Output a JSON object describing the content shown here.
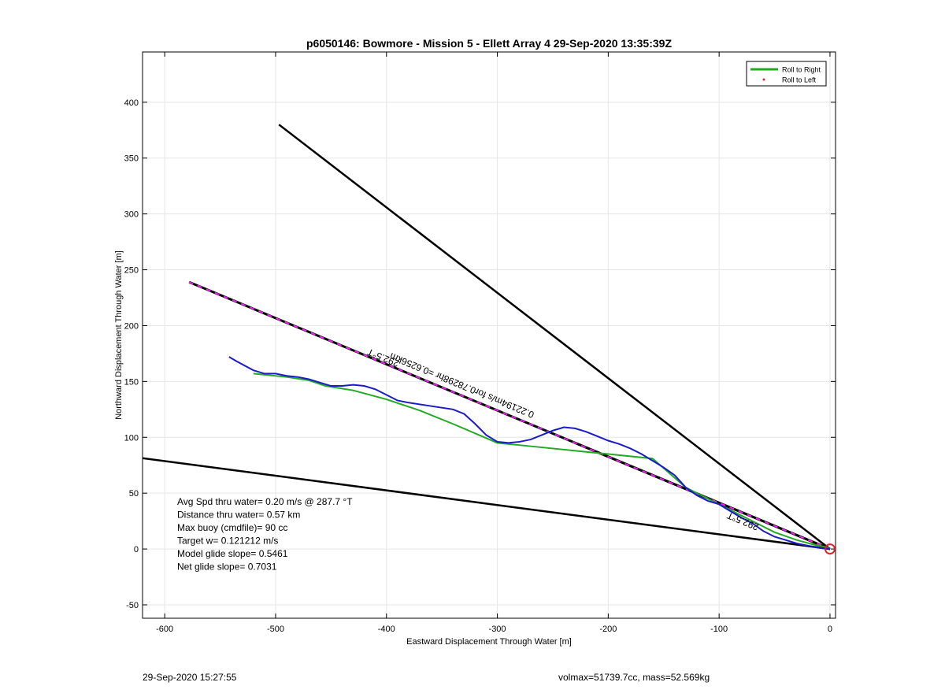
{
  "chart_data": {
    "type": "line",
    "title": "p6050146: Bowmore - Mission 5 - Ellett Array 4 29-Sep-2020 13:35:39Z",
    "xlabel": "Eastward Displacement Through Water [m]",
    "ylabel": "Northward Displacement Through Water [m]",
    "xlim": [
      -620,
      5
    ],
    "ylim": [
      -62,
      445
    ],
    "xticks": [
      -600,
      -500,
      -400,
      -300,
      -200,
      -100,
      0
    ],
    "yticks": [
      -50,
      0,
      50,
      100,
      150,
      200,
      250,
      300,
      350,
      400
    ],
    "grid": true,
    "legend": {
      "placement": "top-right",
      "entries": [
        {
          "label": "Roll to Right",
          "color": "#22aa22",
          "marker": "line"
        },
        {
          "label": "Roll to Left",
          "color": "#ee2222",
          "marker": "dot"
        }
      ]
    },
    "reference_lines": [
      {
        "x": [
          0,
          -497
        ],
        "y": [
          0,
          380
        ],
        "color": "#000000"
      },
      {
        "x": [
          0,
          -625
        ],
        "y": [
          0,
          82
        ],
        "color": "#000000"
      }
    ],
    "course_line": {
      "x": [
        0,
        -578
      ],
      "y": [
        0,
        239
      ],
      "color": "#000000",
      "dash_color": "#ee22ee",
      "label": "292.5°T"
    },
    "current_line": {
      "x": [
        0,
        -230
      ],
      "y": [
        0,
        95
      ],
      "color": "#000000",
      "dash_color": "#ee22ee",
      "label": "292.5°T"
    },
    "current_label": "0.22194m/s for0.78298hr =0.6256km",
    "series": [
      {
        "name": "Roll to Right",
        "color": "#22aa22",
        "x": [
          -520,
          -490,
          -470,
          -455,
          -430,
          -400,
          -370,
          -340,
          -300,
          -280,
          -250,
          -220,
          -200,
          -180,
          -160,
          -130,
          -110,
          -90,
          -70,
          -50,
          -30,
          -15,
          -5,
          0
        ],
        "y": [
          157,
          154,
          151,
          146,
          142,
          134,
          124,
          112,
          95,
          93,
          90,
          87,
          85,
          83,
          81,
          55,
          45,
          35,
          25,
          15,
          8,
          4,
          2,
          0
        ]
      },
      {
        "name": "Roll to Left",
        "color": "#1a1acc",
        "x": [
          -542,
          -535,
          -520,
          -510,
          -500,
          -490,
          -480,
          -470,
          -460,
          -450,
          -440,
          -430,
          -420,
          -410,
          -400,
          -390,
          -380,
          -360,
          -340,
          -330,
          -320,
          -310,
          -300,
          -290,
          -280,
          -270,
          -260,
          -250,
          -240,
          -230,
          -220,
          -210,
          -200,
          -190,
          -180,
          -170,
          -160,
          -150,
          -140,
          -130,
          -120,
          -110,
          -100,
          -90,
          -80,
          -70,
          -60,
          -50,
          -40,
          -30,
          -20,
          -10,
          0
        ],
        "y": [
          172,
          168,
          160,
          157,
          157,
          155,
          154,
          152,
          149,
          146,
          146,
          147,
          146,
          143,
          138,
          133,
          131,
          128,
          125,
          121,
          112,
          102,
          96,
          95,
          96,
          98,
          102,
          106,
          109,
          108,
          105,
          101,
          97,
          94,
          90,
          85,
          79,
          73,
          66,
          55,
          48,
          43,
          40,
          34,
          28,
          23,
          16,
          11,
          8,
          5,
          3,
          1,
          0
        ]
      }
    ],
    "end_marker": {
      "x": 0,
      "y": 0,
      "color": "#dd2222"
    },
    "annotations": [
      "Avg Spd thru water=  0.20 m/s @ 287.7 °T",
      "Distance thru water=  0.57 km",
      "Max buoy (cmdfile)= 90 cc",
      "Target w= 0.121212 m/s",
      "Model glide slope= 0.5461",
      "Net glide slope= 0.7031"
    ]
  },
  "footer": {
    "left": "29-Sep-2020 15:27:55",
    "right": "volmax=51739.7cc, mass=52.569kg"
  }
}
